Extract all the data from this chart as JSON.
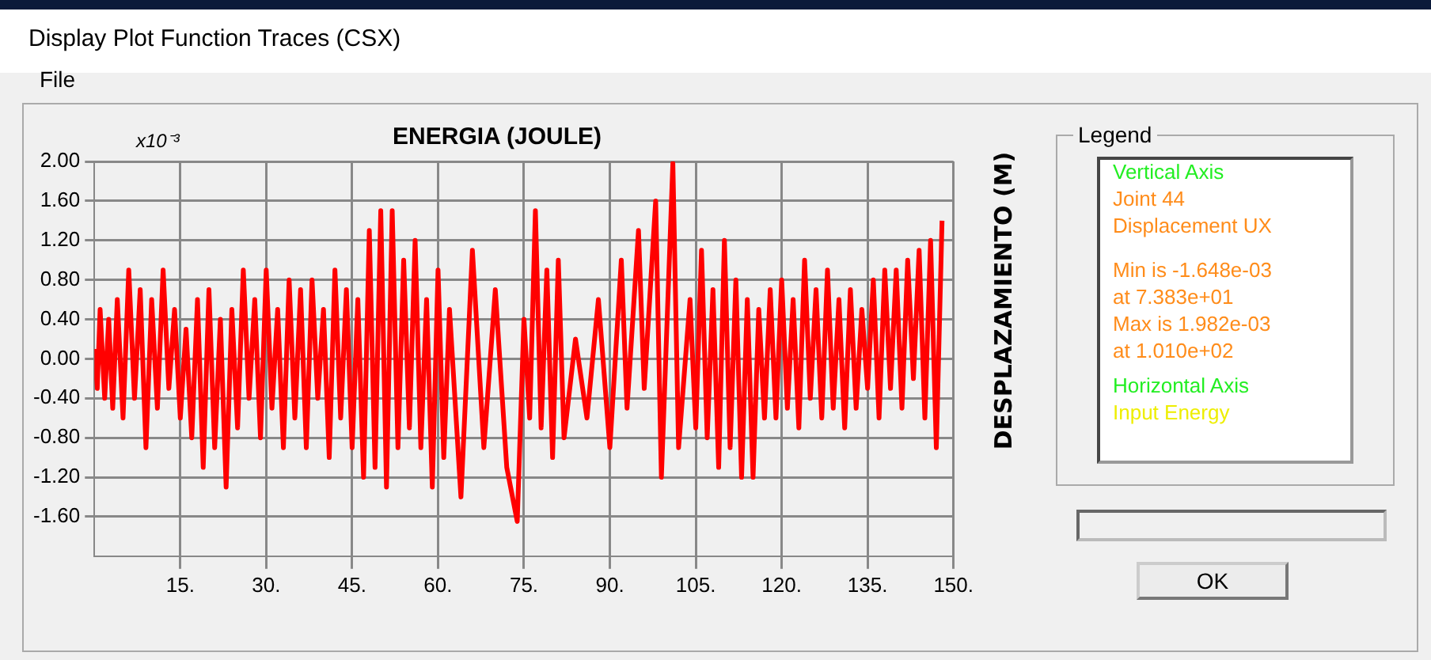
{
  "chart_data": {
    "type": "line",
    "title": "ENERGIA (JOULE)",
    "ylabel": "DESPLAZAMIENTO (M)",
    "annotations": [
      "Display Plot Function Traces  (CSX)",
      "File",
      "x10⁻³",
      "Legend",
      "Vertical Axis",
      "Joint 44",
      "Displacement  UX",
      "Min is -1.648e-03",
      "at 7.383e+01",
      "Max is 1.982e-03",
      "at 1.010e+02",
      "Horizontal Axis",
      "Input Energy",
      "OK"
    ],
    "xlim": [
      0,
      150
    ],
    "xticks": [
      {
        "value": 15,
        "label": "15."
      },
      {
        "value": 30,
        "label": "30."
      },
      {
        "value": 45,
        "label": "45."
      },
      {
        "value": 60,
        "label": "60."
      },
      {
        "value": 75,
        "label": "75."
      },
      {
        "value": 90,
        "label": "90."
      },
      {
        "value": 105,
        "label": "105."
      },
      {
        "value": 120,
        "label": "120."
      },
      {
        "value": 135,
        "label": "135."
      },
      {
        "value": 150,
        "label": "150."
      }
    ],
    "ylim": [
      -2,
      2
    ],
    "yticks": [
      {
        "value": 2,
        "label": "2.00"
      },
      {
        "value": 1.6,
        "label": "1.60"
      },
      {
        "value": 1.2,
        "label": "1.20"
      },
      {
        "value": 0.8,
        "label": "0.80"
      },
      {
        "value": 0.4,
        "label": "0.40"
      },
      {
        "value": 0,
        "label": "0.00"
      },
      {
        "value": -0.4,
        "label": "-0.40"
      },
      {
        "value": -0.8,
        "label": "-0.80"
      },
      {
        "value": -1.2,
        "label": "-1.20"
      },
      {
        "value": -1.6,
        "label": "-1.60"
      }
    ],
    "grid": true,
    "legend": false,
    "marker": "none",
    "line_style": "solid",
    "x": [
      0,
      0.5,
      1,
      1.8,
      2.5,
      3.2,
      4,
      5,
      6,
      7,
      8,
      9,
      10,
      11,
      12,
      13,
      14,
      15,
      16,
      17,
      18,
      19,
      20,
      21,
      22,
      23,
      24,
      25,
      26,
      27,
      28,
      29,
      30,
      31,
      32,
      33,
      34,
      35,
      36,
      37,
      38,
      39,
      40,
      41,
      42,
      43,
      44,
      45,
      46,
      47,
      48,
      49,
      50,
      51,
      52,
      53,
      54,
      55,
      56,
      57,
      58,
      59,
      60,
      61,
      62,
      64,
      66,
      68,
      70,
      72,
      73.83,
      75,
      76,
      77,
      78,
      79,
      80,
      81,
      82,
      84,
      86,
      88,
      90,
      92,
      93,
      95,
      96,
      98,
      99,
      101,
      102,
      104,
      105,
      106,
      107,
      108,
      109,
      110,
      111,
      112,
      113,
      114,
      115,
      116,
      117,
      118,
      119,
      120,
      121,
      122,
      123,
      124,
      125,
      126,
      127,
      128,
      129,
      130,
      131,
      132,
      133,
      134,
      135,
      136,
      137,
      138,
      139,
      140,
      141,
      142,
      143,
      144,
      145,
      146,
      147,
      148
    ],
    "series": [
      {
        "color": "#ff0000",
        "values": [
          0.1,
          -0.3,
          0.5,
          -0.4,
          0.4,
          -0.5,
          0.6,
          -0.6,
          0.9,
          -0.4,
          0.7,
          -0.9,
          0.6,
          -0.5,
          0.9,
          -0.3,
          0.5,
          -0.6,
          0.3,
          -0.8,
          0.6,
          -1.1,
          0.7,
          -0.9,
          0.4,
          -1.3,
          0.5,
          -0.7,
          0.9,
          -0.4,
          0.6,
          -0.8,
          0.9,
          -0.5,
          0.5,
          -0.9,
          0.8,
          -0.6,
          0.7,
          -0.9,
          0.8,
          -0.4,
          0.5,
          -1.0,
          0.9,
          -0.6,
          0.7,
          -0.9,
          0.6,
          -1.2,
          1.3,
          -1.1,
          1.5,
          -1.3,
          1.5,
          -0.9,
          1.0,
          -0.7,
          1.2,
          -0.9,
          0.6,
          -1.3,
          0.9,
          -1.0,
          0.5,
          -1.4,
          1.1,
          -0.9,
          0.7,
          -1.1,
          -1.648,
          0.4,
          -0.6,
          1.5,
          -0.7,
          0.9,
          -1.0,
          1.0,
          -0.8,
          0.2,
          -0.6,
          0.6,
          -0.9,
          1.0,
          -0.5,
          1.3,
          -0.3,
          1.6,
          -1.2,
          1.982,
          -0.9,
          0.6,
          -0.7,
          1.1,
          -0.8,
          0.7,
          -1.1,
          1.2,
          -0.9,
          0.8,
          -1.2,
          0.6,
          -1.2,
          0.5,
          -0.6,
          0.7,
          -0.6,
          0.8,
          -0.5,
          0.6,
          -0.7,
          1.0,
          -0.4,
          0.7,
          -0.6,
          0.9,
          -0.5,
          0.6,
          -0.7,
          0.7,
          -0.5,
          0.5,
          -0.3,
          0.8,
          -0.6,
          0.9,
          -0.3,
          0.9,
          -0.5,
          1.0,
          -0.2,
          1.1,
          -0.6,
          1.2,
          -0.9,
          1.4
        ]
      }
    ]
  }
}
